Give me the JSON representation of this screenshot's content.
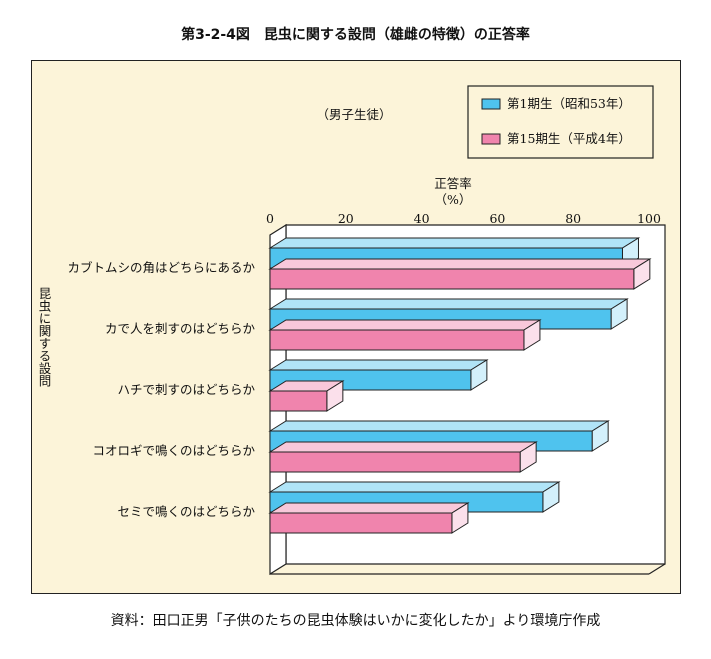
{
  "figure_title": "第3-2-4図　昆虫に関する設問（雄雌の特徴）の正答率",
  "source_note": "資料：田口正男「子供のたちの昆虫体験はいかに変化したか」より環境庁作成",
  "subtitle": "（男子生徒）",
  "axis_title_line1": "正答率",
  "axis_title_line2": "（%）",
  "y_axis_title": "昆虫に関する設問",
  "colors": {
    "series1": "#4fc3ee",
    "series2": "#f084ad",
    "background": "#fcf4d9"
  },
  "chart_data": {
    "type": "bar",
    "orientation": "horizontal",
    "xlim": [
      0,
      100
    ],
    "xticks": [
      "0",
      "20",
      "40",
      "60",
      "80",
      "100"
    ],
    "categories": [
      "カブトムシの角はどちらにあるか",
      "カで人を刺すのはどちらか",
      "ハチで刺すのはどちらか",
      "コオロギで鳴くのはどちらか",
      "セミで鳴くのはどちらか"
    ],
    "series": [
      {
        "name": "第1期生（昭和53年）",
        "values": [
          93,
          90,
          53,
          85,
          72
        ]
      },
      {
        "name": "第15期生（平成4年）",
        "values": [
          96,
          67,
          15,
          66,
          48
        ]
      }
    ],
    "legend_position": "top-right"
  }
}
